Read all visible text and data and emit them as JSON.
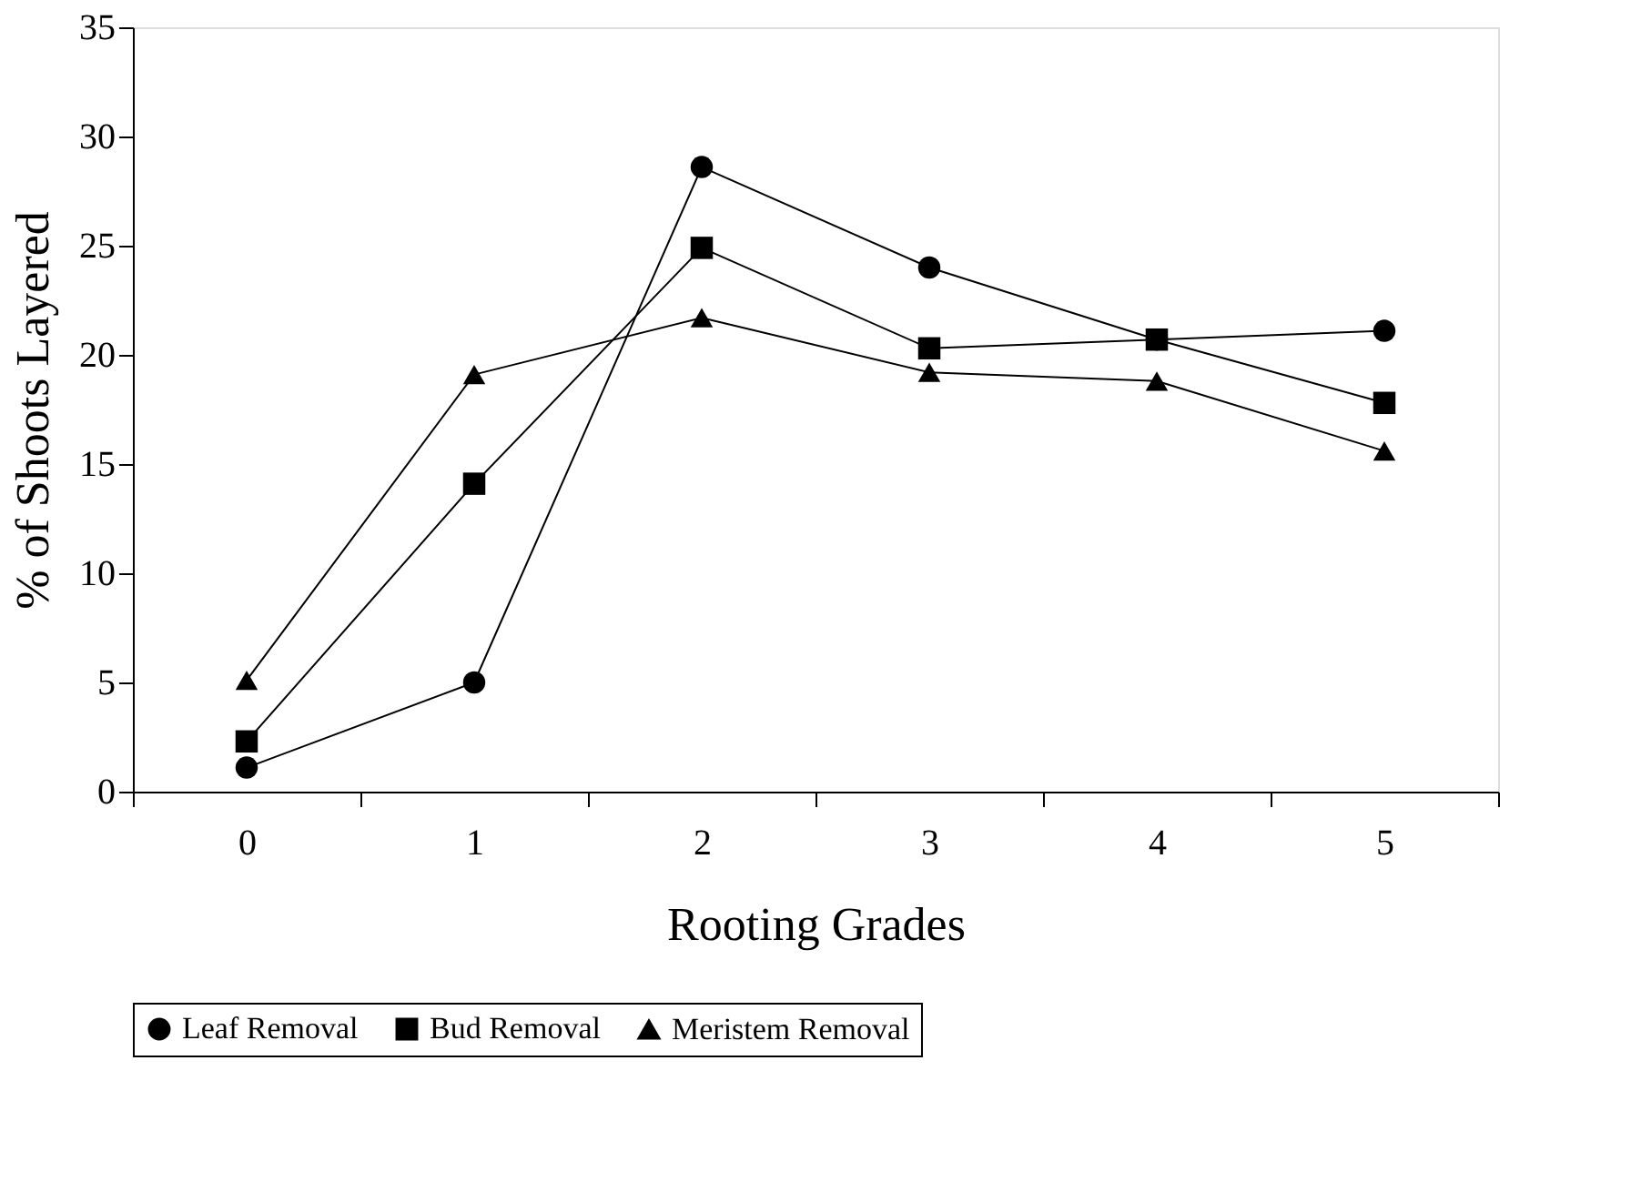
{
  "chart_data": {
    "type": "line",
    "xlabel": "Rooting Grades",
    "ylabel": "% of Shoots Layered",
    "categories": [
      "0",
      "1",
      "2",
      "3",
      "4",
      "5"
    ],
    "series": [
      {
        "name": "Leaf Removal",
        "color": "#000000",
        "marker": "circle",
        "values": [
          1.1,
          5.0,
          28.6,
          24.0,
          20.7,
          21.1
        ]
      },
      {
        "name": "Bud Removal",
        "color": "#000000",
        "marker": "square",
        "values": [
          2.3,
          14.1,
          24.9,
          20.3,
          20.7,
          17.8
        ]
      },
      {
        "name": "Meristem Removal",
        "color": "#000000",
        "marker": "triangle",
        "values": [
          5.1,
          19.1,
          21.7,
          19.2,
          18.8,
          15.6
        ]
      }
    ],
    "ylim": [
      0,
      35
    ],
    "yticks": [
      0,
      5,
      10,
      15,
      20,
      25,
      30,
      35
    ],
    "grid": false,
    "legend": "bottom",
    "line_style": "solid"
  }
}
